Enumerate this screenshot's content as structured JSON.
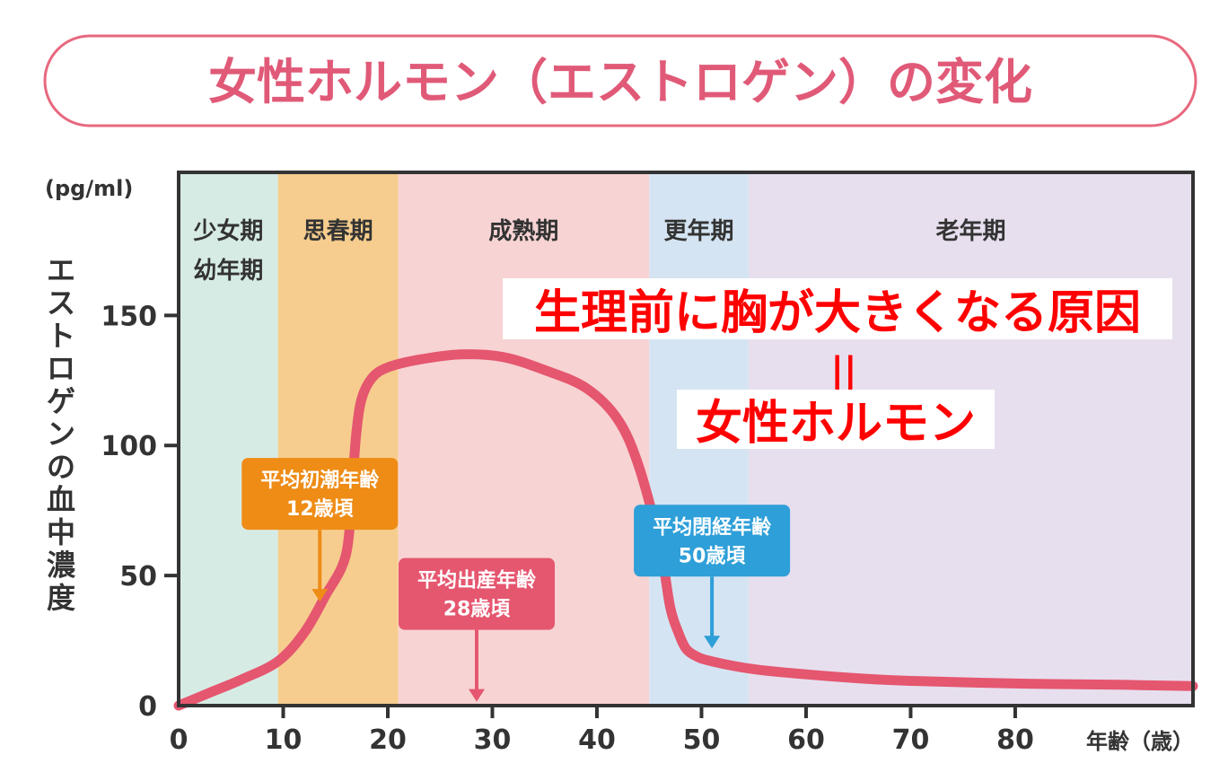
{
  "title": "女性ホルモン（エストロゲン）の変化",
  "colors": {
    "title_border": "#e8697f",
    "title_text": "#e05a78",
    "curve": "#e5566f",
    "axis": "#333333",
    "overlay_text": "#ff0000",
    "overlay_bg": "#ffffff"
  },
  "chart_data": {
    "type": "line",
    "title": "女性ホルモン（エストロゲン）の変化",
    "unit_label": "(pg/ml)",
    "ylabel": "エストロゲンの血中濃度",
    "xlabel_suffix": "年齢（歳）",
    "xlim": [
      0,
      97
    ],
    "ylim": [
      0,
      205
    ],
    "xticks": [
      0,
      10,
      20,
      30,
      40,
      50,
      60,
      70,
      80
    ],
    "xtick_labels": [
      "0",
      "10",
      "20",
      "30",
      "40",
      "50",
      "60",
      "70",
      "80"
    ],
    "yticks": [
      0,
      50,
      100,
      150
    ],
    "ytick_labels": [
      "0",
      "50",
      "100",
      "150"
    ],
    "grid": false,
    "phases": [
      {
        "lines": [
          "少女期",
          "幼年期"
        ],
        "from": 0,
        "to": 9.5,
        "color": "#d7ebe5"
      },
      {
        "lines": [
          "思春期"
        ],
        "from": 9.5,
        "to": 21,
        "color": "#f6cd8e"
      },
      {
        "lines": [
          "成熟期"
        ],
        "from": 21,
        "to": 45,
        "color": "#f7d3d3"
      },
      {
        "lines": [
          "更年期"
        ],
        "from": 45,
        "to": 54.5,
        "color": "#d5e4f2"
      },
      {
        "lines": [
          "老年期"
        ],
        "from": 54.5,
        "to": 97,
        "color": "#e7dfee"
      }
    ],
    "series": [
      {
        "color": "#e5566f",
        "x": [
          0,
          3,
          6,
          9.5,
          12,
          14,
          16,
          16.6,
          17,
          17.5,
          18.5,
          20,
          23,
          27,
          31,
          35,
          39,
          42,
          44,
          46,
          47,
          47.8,
          48.5,
          49.5,
          51,
          55,
          60,
          65,
          70,
          80,
          90,
          97
        ],
        "y": [
          0,
          5,
          10,
          17,
          28,
          42,
          58,
          85,
          105,
          118,
          126,
          130,
          133,
          135,
          134,
          129,
          122,
          110,
          92,
          62,
          38,
          28,
          22,
          19,
          17,
          14,
          12,
          10.5,
          9.5,
          8.5,
          8,
          7.5
        ]
      }
    ],
    "annotations": [
      {
        "lines": [
          "平均初潮年齢",
          "12歳頃"
        ],
        "x": 13.5,
        "y": 40,
        "color": "#ee8c16"
      },
      {
        "lines": [
          "平均出産年齢",
          "28歳頃"
        ],
        "x": 28.5,
        "y": 1.5,
        "color": "#e5566f"
      },
      {
        "lines": [
          "平均閉経年齢",
          "50歳頃"
        ],
        "x": 51,
        "y": 22,
        "color": "#2e9fd8"
      }
    ]
  },
  "overlay": {
    "line1": "生理前に胸が大きくなる原因",
    "line2": "||",
    "line3": "女性ホルモン"
  }
}
